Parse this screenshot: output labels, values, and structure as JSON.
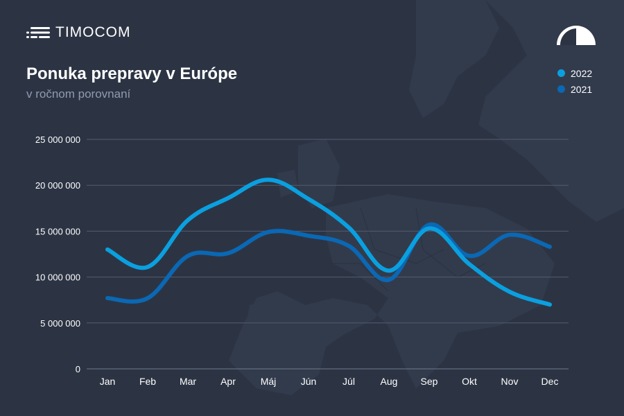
{
  "brand": {
    "name": "TIMOCOM"
  },
  "header": {
    "title": "Ponuka prepravy v Európe",
    "subtitle": "v ročnom porovnaní"
  },
  "icons": {
    "logo": "timocom-lines-icon",
    "gauge": "speedometer-icon"
  },
  "colors": {
    "background": "#2c3444",
    "series_2022": "#0aa0e0",
    "series_2021": "#0a68b4"
  },
  "chart_data": {
    "type": "line",
    "title": "Ponuka prepravy v Európe",
    "subtitle": "v ročnom porovnaní",
    "xlabel": "",
    "ylabel": "",
    "categories": [
      "Jan",
      "Feb",
      "Mar",
      "Apr",
      "Máj",
      "Jún",
      "Júl",
      "Aug",
      "Sep",
      "Okt",
      "Nov",
      "Dec"
    ],
    "yticks": [
      0,
      5000000,
      10000000,
      15000000,
      20000000,
      25000000
    ],
    "ytick_labels": [
      "0",
      "5 000 000",
      "10 000 000",
      "15 000 000",
      "20 000 000",
      "25 000 000"
    ],
    "ylim": [
      0,
      25000000
    ],
    "grid": true,
    "legend_position": "top-right",
    "series": [
      {
        "name": "2022",
        "color": "#0aa0e0",
        "values": [
          13000000,
          11100000,
          16200000,
          18600000,
          20600000,
          18500000,
          15400000,
          10700000,
          15300000,
          11400000,
          8400000,
          7000000
        ]
      },
      {
        "name": "2021",
        "color": "#0a68b4",
        "values": [
          7700000,
          7700000,
          12300000,
          12600000,
          14900000,
          14500000,
          13400000,
          9700000,
          15700000,
          12300000,
          14600000,
          13300000
        ]
      }
    ]
  }
}
